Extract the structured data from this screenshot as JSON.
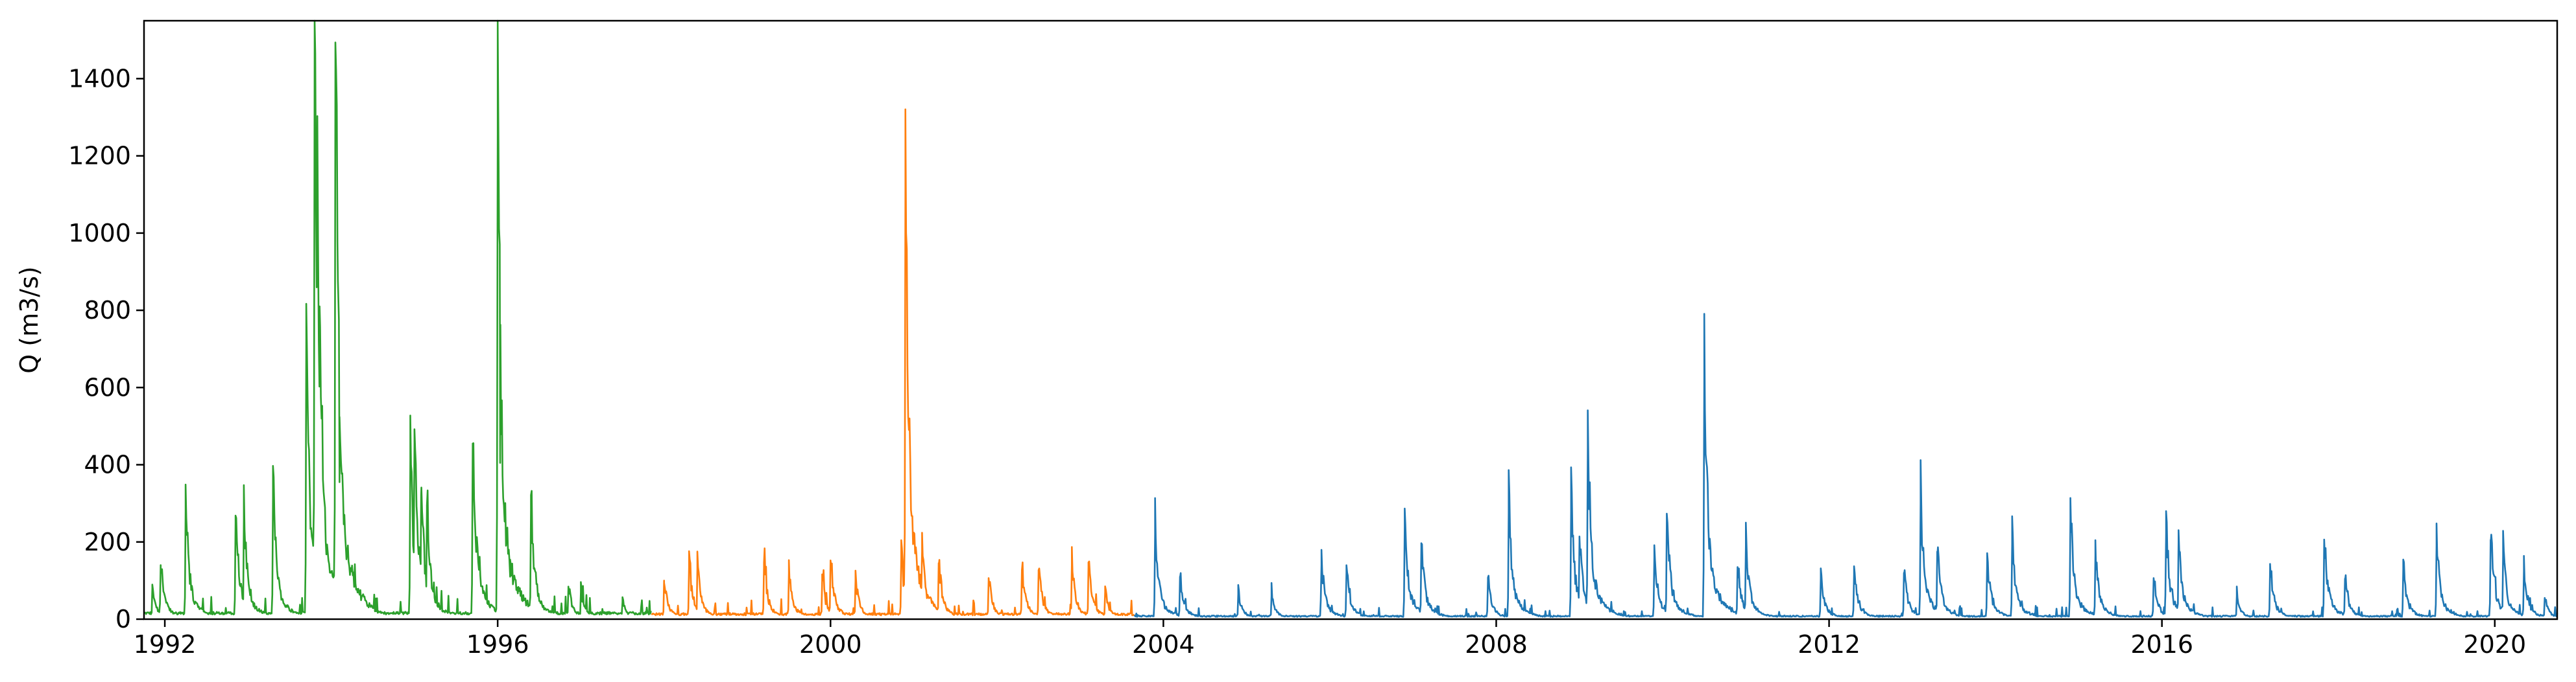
{
  "chart_data": {
    "type": "line",
    "title": "",
    "xlabel": "",
    "ylabel": "Q (m3/s)",
    "xlim": [
      1991.75,
      2020.75
    ],
    "ylim": [
      0,
      1550
    ],
    "grid": false,
    "x_ticks": [
      1992,
      1996,
      2000,
      2004,
      2008,
      2012,
      2016,
      2020
    ],
    "x_tick_labels": [
      "1992",
      "1996",
      "2000",
      "2004",
      "2008",
      "2012",
      "2016",
      "2020"
    ],
    "y_ticks": [
      0,
      200,
      400,
      600,
      800,
      1000,
      1200,
      1400
    ],
    "y_tick_labels": [
      "0",
      "200",
      "400",
      "600",
      "800",
      "1000",
      "1200",
      "1400"
    ],
    "series": [
      {
        "color": "#2ca02c",
        "x_range": [
          1991.75,
          1997.85
        ],
        "baseline": 12,
        "peaks": [
          [
            1991.85,
            80
          ],
          [
            1991.95,
            140
          ],
          [
            1992.25,
            280
          ],
          [
            1992.85,
            250
          ],
          [
            1992.95,
            255
          ],
          [
            1993.3,
            315
          ],
          [
            1993.7,
            720
          ],
          [
            1993.8,
            1480
          ],
          [
            1993.83,
            1010
          ],
          [
            1993.86,
            810
          ],
          [
            1994.05,
            1435
          ],
          [
            1994.08,
            875
          ],
          [
            1994.1,
            355
          ],
          [
            1994.95,
            410
          ],
          [
            1995.0,
            455
          ],
          [
            1995.08,
            320
          ],
          [
            1995.15,
            285
          ],
          [
            1995.7,
            455
          ],
          [
            1996.0,
            1255
          ],
          [
            1996.03,
            405
          ],
          [
            1996.15,
            110
          ],
          [
            1996.4,
            285
          ],
          [
            1996.85,
            80
          ],
          [
            1997.0,
            70
          ],
          [
            1997.5,
            45
          ]
        ]
      },
      {
        "color": "#ff7f0e",
        "x_range": [
          1997.85,
          2003.65
        ],
        "baseline": 10,
        "peaks": [
          [
            1998.0,
            100
          ],
          [
            1998.3,
            135
          ],
          [
            1998.4,
            130
          ],
          [
            1999.2,
            135
          ],
          [
            1999.5,
            120
          ],
          [
            1999.9,
            100
          ],
          [
            2000.0,
            150
          ],
          [
            2000.3,
            100
          ],
          [
            2000.9,
            1115
          ],
          [
            2000.85,
            160
          ],
          [
            2001.1,
            175
          ],
          [
            2001.3,
            145
          ],
          [
            2001.9,
            100
          ],
          [
            2002.3,
            125
          ],
          [
            2002.5,
            120
          ],
          [
            2002.9,
            140
          ],
          [
            2003.1,
            135
          ],
          [
            2003.3,
            70
          ]
        ]
      },
      {
        "color": "#1f77b4",
        "x_range": [
          2003.65,
          2020.75
        ],
        "baseline": 6,
        "peaks": [
          [
            2003.9,
            220
          ],
          [
            2004.2,
            110
          ],
          [
            2004.9,
            65
          ],
          [
            2005.3,
            60
          ],
          [
            2005.9,
            140
          ],
          [
            2006.2,
            120
          ],
          [
            2006.9,
            240
          ],
          [
            2007.1,
            185
          ],
          [
            2007.9,
            100
          ],
          [
            2008.15,
            275
          ],
          [
            2008.9,
            280
          ],
          [
            2009.0,
            200
          ],
          [
            2009.1,
            445
          ],
          [
            2009.9,
            160
          ],
          [
            2010.05,
            255
          ],
          [
            2010.5,
            630
          ],
          [
            2010.9,
            135
          ],
          [
            2011.0,
            190
          ],
          [
            2011.9,
            105
          ],
          [
            2012.3,
            115
          ],
          [
            2012.9,
            120
          ],
          [
            2013.1,
            300
          ],
          [
            2013.3,
            175
          ],
          [
            2013.9,
            150
          ],
          [
            2014.2,
            195
          ],
          [
            2014.9,
            260
          ],
          [
            2015.2,
            165
          ],
          [
            2015.9,
            105
          ],
          [
            2016.05,
            220
          ],
          [
            2016.2,
            200
          ],
          [
            2016.9,
            60
          ],
          [
            2017.3,
            130
          ],
          [
            2017.95,
            200
          ],
          [
            2018.2,
            105
          ],
          [
            2018.9,
            130
          ],
          [
            2019.3,
            190
          ],
          [
            2019.95,
            205
          ],
          [
            2020.1,
            165
          ],
          [
            2020.35,
            125
          ],
          [
            2020.6,
            55
          ]
        ]
      }
    ]
  }
}
